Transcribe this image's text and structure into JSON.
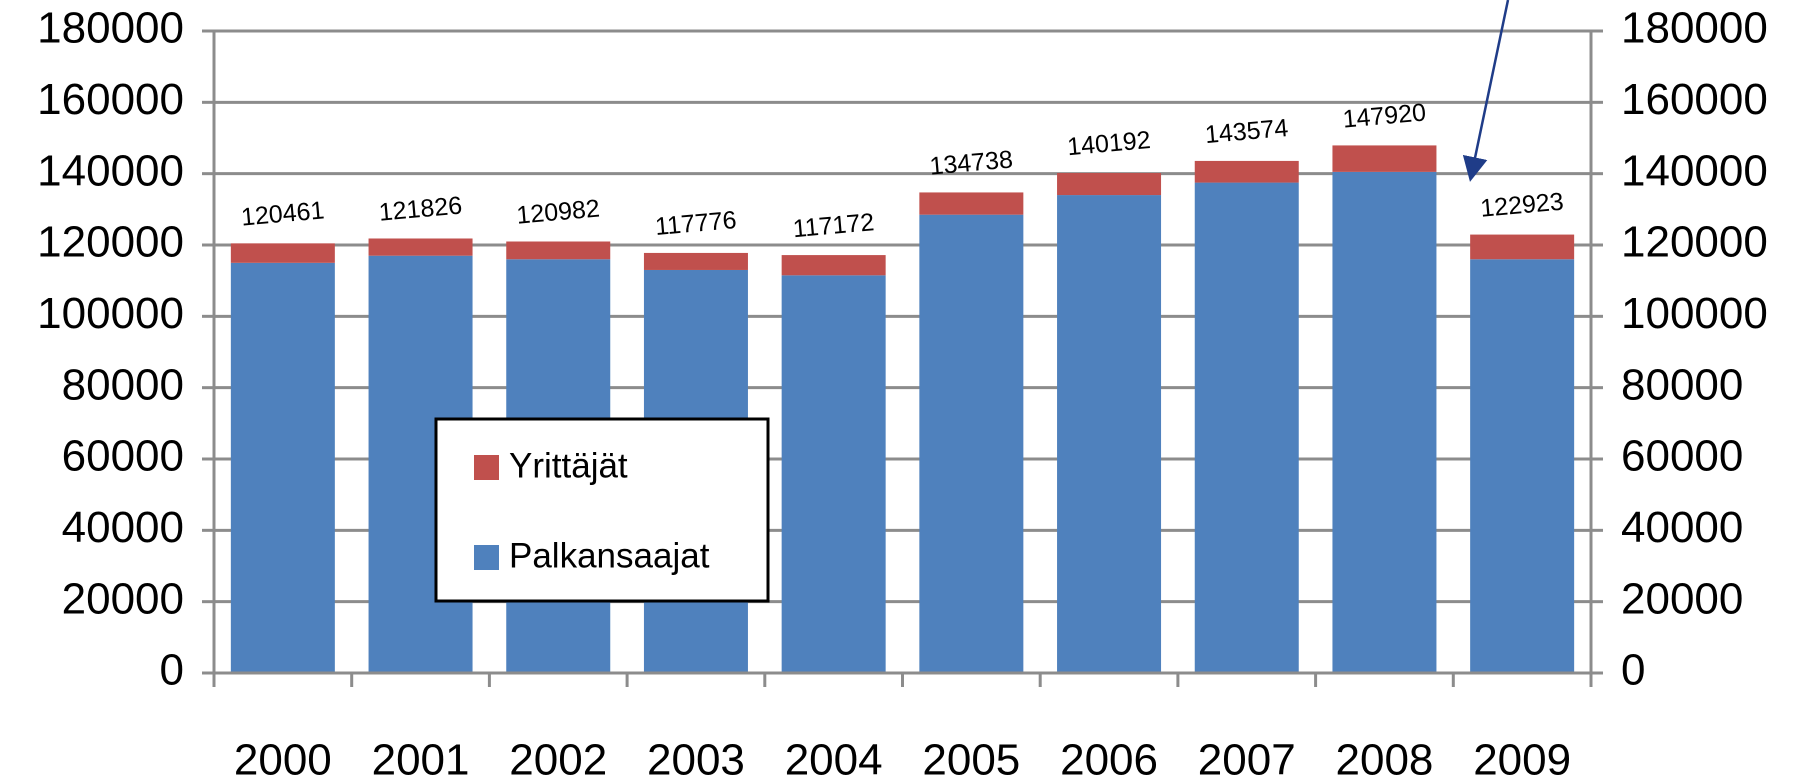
{
  "chart_data": {
    "type": "stacked-bar",
    "categories": [
      "2000",
      "2001",
      "2002",
      "2003",
      "2004",
      "2005",
      "2006",
      "2007",
      "2008",
      "2009"
    ],
    "series": [
      {
        "name": "Palkansaajat",
        "color": "#4f81bd",
        "values": [
          115000,
          117000,
          116000,
          113000,
          111500,
          128500,
          134000,
          137500,
          140500,
          116000
        ]
      },
      {
        "name": "Yrittäjät",
        "color": "#c0504d",
        "values": [
          5461,
          4826,
          4982,
          4776,
          5672,
          6238,
          6192,
          6074,
          7420,
          6923
        ]
      }
    ],
    "totals": [
      120461,
      121826,
      120982,
      117776,
      117172,
      134738,
      140192,
      143574,
      147920,
      122923
    ],
    "ylim": [
      0,
      180000
    ],
    "yticks": [
      0,
      20000,
      40000,
      60000,
      80000,
      100000,
      120000,
      140000,
      160000,
      180000
    ],
    "grid": true
  }
}
